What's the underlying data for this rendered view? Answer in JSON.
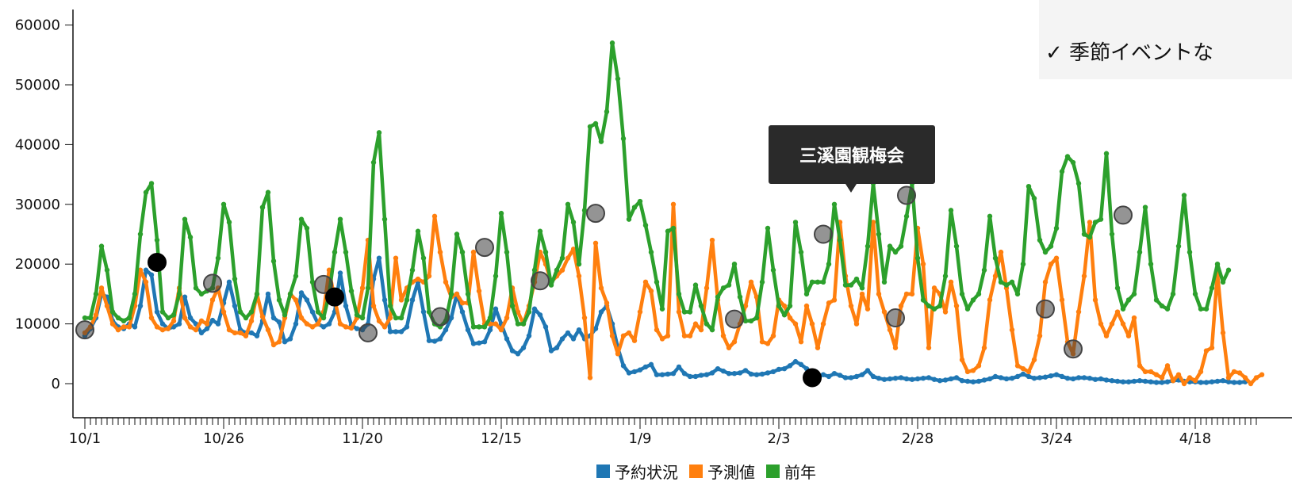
{
  "note": {
    "text": "✓ 季節イベントな"
  },
  "tooltip": {
    "text": "三溪園観梅会"
  },
  "chart_data": {
    "type": "line",
    "y_ticks": [
      0,
      10000,
      20000,
      30000,
      40000,
      50000,
      60000
    ],
    "ylim": [
      -5600,
      62000
    ],
    "x_labels": [
      "10/1",
      "10/26",
      "11/20",
      "12/15",
      "1/9",
      "2/3",
      "2/28",
      "3/24",
      "4/18"
    ],
    "n_points": 212,
    "series": [
      {
        "name": "予約状況",
        "color": "#1f77b4",
        "values": [
          8000,
          9200,
          11000,
          15000,
          14500,
          10500,
          9500,
          9200,
          10000,
          9500,
          13000,
          19000,
          18200,
          12000,
          10000,
          9200,
          9500,
          10000,
          14500,
          11000,
          10000,
          8500,
          9200,
          10600,
          10000,
          13500,
          17000,
          13000,
          9000,
          8500,
          8500,
          8000,
          10500,
          15000,
          11000,
          10300,
          7000,
          7500,
          10000,
          15200,
          14000,
          12000,
          10000,
          9500,
          10000,
          12000,
          18500,
          13000,
          9800,
          9200,
          9000,
          10000,
          17500,
          21000,
          14000,
          8700,
          8700,
          8700,
          9500,
          14000,
          17000,
          12000,
          7200,
          7100,
          7500,
          9000,
          11000,
          15000,
          12000,
          9000,
          6700,
          6800,
          7000,
          9000,
          12500,
          10000,
          7500,
          5500,
          5000,
          6000,
          8000,
          12500,
          11500,
          9500,
          5500,
          6000,
          7500,
          8500,
          7500,
          9000,
          7500,
          8000,
          9200,
          12000,
          13000,
          10000,
          6000,
          3000,
          1800,
          2000,
          2300,
          2800,
          3200,
          1500,
          1500,
          1600,
          1700,
          2800,
          1700,
          1200,
          1200,
          1400,
          1500,
          1800,
          2500,
          2100,
          1700,
          1700,
          1800,
          2200,
          1600,
          1500,
          1600,
          1800,
          2000,
          2400,
          2500,
          3000,
          3700,
          3200,
          2500,
          1800,
          1200,
          1500,
          1200,
          1700,
          1400,
          1000,
          1000,
          1200,
          1500,
          2200,
          1200,
          900,
          700,
          800,
          900,
          1000,
          800,
          700,
          800,
          900,
          1000,
          700,
          500,
          600,
          800,
          1000,
          500,
          400,
          300,
          400,
          600,
          800,
          1200,
          1000,
          800,
          900,
          1200,
          1600,
          1200,
          900,
          1000,
          1100,
          1300,
          1500,
          1200,
          900,
          800,
          1000,
          1000,
          900,
          700,
          800,
          600,
          500,
          400,
          300,
          300,
          400,
          500,
          400,
          300,
          200,
          200,
          300,
          500,
          600,
          400,
          300,
          300,
          200,
          200,
          300,
          400,
          500,
          300,
          200,
          200,
          300
        ],
        "rendered_count": 212
      },
      {
        "name": "予測値",
        "color": "#ff7f0e",
        "values": [
          8500,
          9500,
          11500,
          16000,
          13000,
          10000,
          9000,
          9500,
          9500,
          13000,
          19000,
          17000,
          11000,
          9500,
          9000,
          9200,
          10500,
          16000,
          11000,
          9500,
          9000,
          10500,
          10000,
          14000,
          16000,
          12000,
          9000,
          8500,
          8500,
          8000,
          10500,
          15000,
          11200,
          9000,
          6500,
          7000,
          11000,
          15000,
          14000,
          11000,
          10000,
          9500,
          10000,
          12000,
          19000,
          14000,
          10000,
          9500,
          9300,
          11000,
          16000,
          24000,
          13000,
          10500,
          9500,
          11000,
          21000,
          14000,
          16000,
          17000,
          17500,
          17000,
          18000,
          28000,
          22000,
          17000,
          14500,
          15000,
          13500,
          13500,
          22000,
          15500,
          10000,
          10000,
          10000,
          9000,
          11000,
          16000,
          12000,
          10000,
          13000,
          17000,
          22000,
          20000,
          17000,
          18000,
          19000,
          21000,
          22500,
          18000,
          11000,
          1000,
          23500,
          16000,
          13500,
          8000,
          5000,
          8000,
          8500,
          7200,
          12000,
          17000,
          15500,
          9000,
          7500,
          8000,
          30000,
          12000,
          8000,
          8000,
          10000,
          9000,
          16000,
          24000,
          14000,
          8000,
          6000,
          7000,
          10000,
          13000,
          17000,
          14500,
          7000,
          6700,
          8000,
          14000,
          13000,
          11000,
          10000,
          7000,
          13000,
          10000,
          6000,
          10000,
          13500,
          14000,
          27000,
          18000,
          13000,
          10000,
          15000,
          12500,
          27000,
          15000,
          12000,
          9000,
          6000,
          13000,
          15000,
          15000,
          26000,
          20000,
          6000,
          16000,
          15000,
          12000,
          17000,
          13000,
          4000,
          2000,
          2200,
          3000,
          6000,
          14000,
          18000,
          22000,
          16000,
          9000,
          3000,
          2500,
          2000,
          4000,
          8000,
          17000,
          20000,
          21000,
          14000,
          7000,
          5000,
          12000,
          18000,
          27000,
          14000,
          10000,
          8000,
          10000,
          12000,
          10000,
          8000,
          11000,
          3000,
          2000,
          2000,
          1500,
          1000,
          3000,
          500,
          1500,
          0,
          1000,
          500,
          2000,
          5500,
          6000,
          18500,
          8500,
          1000,
          2000,
          1800,
          1000,
          0,
          1000,
          1500
        ],
        "rendered_count": 212
      },
      {
        "name": "前年",
        "color": "#2ca02c",
        "values": [
          11000,
          11000,
          15000,
          23000,
          19000,
          12000,
          11000,
          10500,
          11000,
          15000,
          25000,
          32000,
          33500,
          24000,
          12000,
          11000,
          11500,
          15000,
          27500,
          24500,
          16000,
          15000,
          15500,
          16000,
          21000,
          30000,
          27000,
          17500,
          12000,
          11000,
          12000,
          15000,
          29500,
          32000,
          20500,
          14000,
          11500,
          15000,
          18000,
          27500,
          26000,
          17000,
          12000,
          11000,
          15000,
          22000,
          27500,
          22000,
          15500,
          11500,
          11000,
          16000,
          37000,
          42000,
          27500,
          13000,
          11000,
          11000,
          14000,
          19000,
          25500,
          21000,
          12000,
          10000,
          9500,
          10500,
          15000,
          25000,
          22000,
          15000,
          9500,
          9500,
          9500,
          11000,
          18000,
          28500,
          22000,
          13000,
          10000,
          10000,
          12000,
          19000,
          25500,
          22000,
          16500,
          19000,
          21000,
          30000,
          27000,
          20000,
          29000,
          43000,
          43500,
          40500,
          45500,
          57000,
          51000,
          41000,
          27500,
          29500,
          30500,
          26500,
          22000,
          17000,
          12500,
          25500,
          26000,
          15000,
          12000,
          12000,
          16500,
          13000,
          10000,
          9000,
          14500,
          16000,
          16500,
          20000,
          14500,
          10500,
          10500,
          11000,
          17000,
          26000,
          19000,
          13000,
          11500,
          13000,
          27000,
          22000,
          15000,
          17000,
          17000,
          17000,
          20000,
          30000,
          24000,
          16500,
          16500,
          17500,
          16000,
          23000,
          33500,
          25000,
          17000,
          23000,
          22000,
          23000,
          28000,
          33500,
          21000,
          14000,
          13000,
          12500,
          13000,
          18000,
          29000,
          23000,
          15000,
          12500,
          14000,
          15000,
          19000,
          28000,
          21000,
          17000,
          16500,
          17000,
          15000,
          20000,
          33000,
          31000,
          24000,
          22000,
          23000,
          26000,
          35500,
          38000,
          37000,
          33500,
          25000,
          24500,
          27000,
          27500,
          38500,
          25000,
          16000,
          12500,
          14000,
          15000,
          22000,
          29500,
          20000,
          14000,
          13000,
          12500,
          15000,
          23000,
          31500,
          22000,
          15000,
          12500,
          12500,
          16000,
          20000,
          17000,
          19000
        ],
        "rendered_count": 212
      }
    ],
    "events": [
      {
        "day": 0,
        "value": 9000,
        "style": "gray"
      },
      {
        "day": 13,
        "value": 20300,
        "style": "black"
      },
      {
        "day": 23,
        "value": 16800,
        "style": "gray"
      },
      {
        "day": 43,
        "value": 16600,
        "style": "gray"
      },
      {
        "day": 45,
        "value": 14500,
        "style": "black"
      },
      {
        "day": 51,
        "value": 8500,
        "style": "gray"
      },
      {
        "day": 64,
        "value": 11200,
        "style": "gray"
      },
      {
        "day": 72,
        "value": 22800,
        "style": "gray"
      },
      {
        "day": 82,
        "value": 17200,
        "style": "gray"
      },
      {
        "day": 92,
        "value": 28500,
        "style": "gray"
      },
      {
        "day": 117,
        "value": 10800,
        "style": "gray"
      },
      {
        "day": 131,
        "value": 1000,
        "style": "black"
      },
      {
        "day": 133,
        "value": 25000,
        "style": "gray"
      },
      {
        "day": 146,
        "value": 11000,
        "style": "gray"
      },
      {
        "day": 148,
        "value": 31500,
        "style": "gray"
      },
      {
        "day": 173,
        "value": 12500,
        "style": "gray"
      },
      {
        "day": 178,
        "value": 5800,
        "style": "gray"
      },
      {
        "day": 187,
        "value": 28200,
        "style": "gray"
      }
    ],
    "legend": [
      "予約状況",
      "予測値",
      "前年"
    ]
  }
}
